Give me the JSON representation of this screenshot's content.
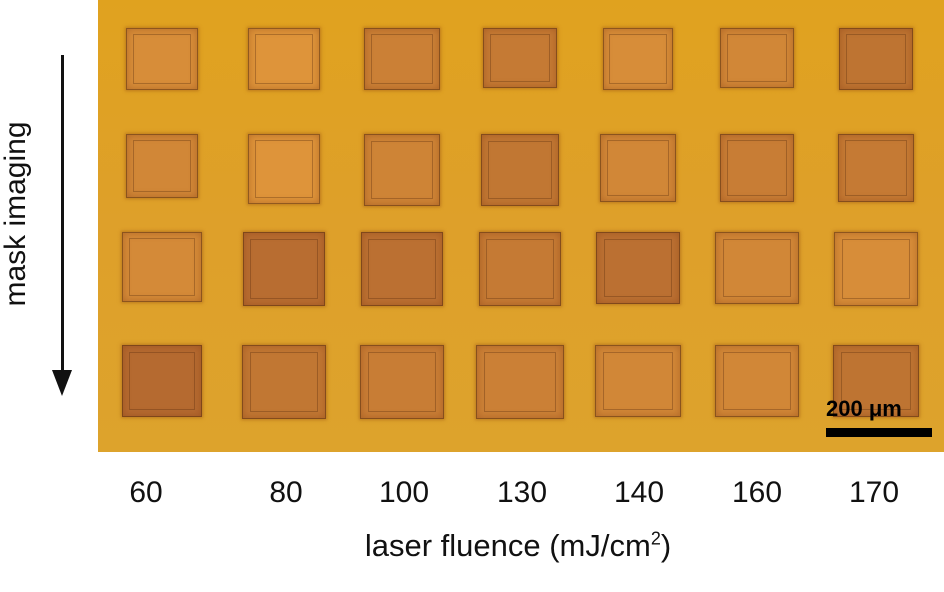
{
  "figure": {
    "row_axis_label": "mask imaging",
    "x_axis_label": "laser fluence (mJ/cm",
    "x_axis_label_superscript": "2",
    "x_axis_label_suffix": ")",
    "fluence_values": [
      "60",
      "80",
      "100",
      "130",
      "140",
      "160",
      "170"
    ],
    "scale_bar_label": "200 μm",
    "colors": {
      "substrate": "#dfa226",
      "pad_light": "#e49a3c",
      "pad_dark": "#a55a2c",
      "text": "#111111"
    }
  }
}
